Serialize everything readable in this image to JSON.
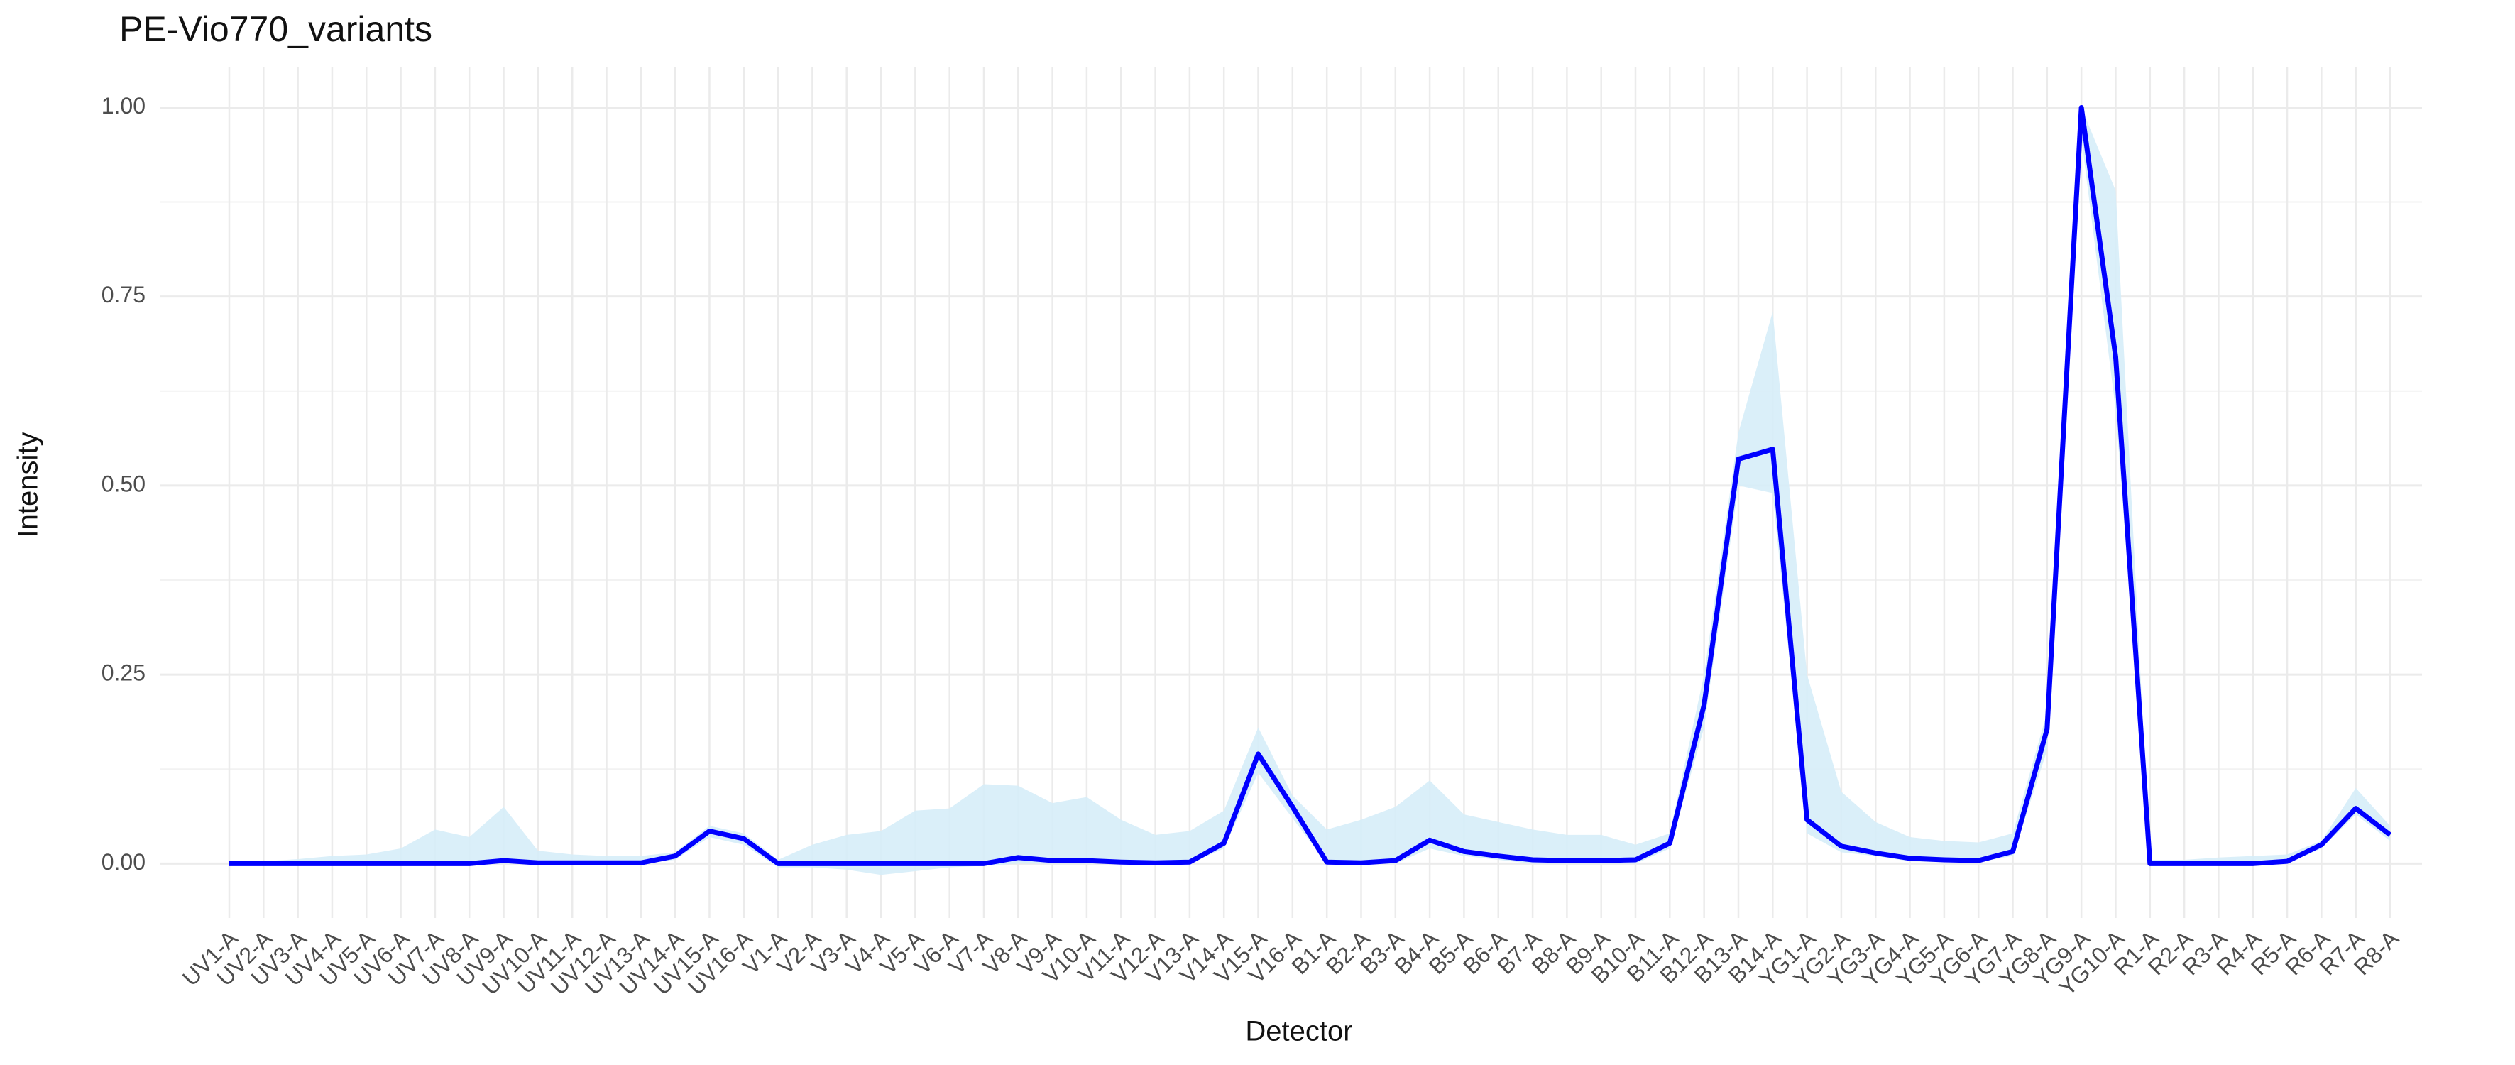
{
  "chart_data": {
    "type": "line",
    "title": "PE-Vio770_variants",
    "x_label": "Detector",
    "y_label": "Intensity",
    "categories": [
      "UV1-A",
      "UV2-A",
      "UV3-A",
      "UV4-A",
      "UV5-A",
      "UV6-A",
      "UV7-A",
      "UV8-A",
      "UV9-A",
      "UV10-A",
      "UV11-A",
      "UV12-A",
      "UV13-A",
      "UV14-A",
      "UV15-A",
      "UV16-A",
      "V1-A",
      "V2-A",
      "V3-A",
      "V4-A",
      "V5-A",
      "V6-A",
      "V7-A",
      "V8-A",
      "V9-A",
      "V10-A",
      "V11-A",
      "V12-A",
      "V13-A",
      "V14-A",
      "V15-A",
      "V16-A",
      "B1-A",
      "B2-A",
      "B3-A",
      "B4-A",
      "B5-A",
      "B6-A",
      "B7-A",
      "B8-A",
      "B9-A",
      "B10-A",
      "B11-A",
      "B12-A",
      "B13-A",
      "B14-A",
      "YG1-A",
      "YG2-A",
      "YG3-A",
      "YG4-A",
      "YG5-A",
      "YG6-A",
      "YG7-A",
      "YG8-A",
      "YG9-A",
      "YG10-A",
      "R1-A",
      "R2-A",
      "R3-A",
      "R4-A",
      "R5-A",
      "R6-A",
      "R7-A",
      "R8-A"
    ],
    "series": [
      {
        "color": "#0000ff",
        "values": [
          0,
          0,
          0,
          0,
          0,
          0,
          0,
          0,
          0.004,
          0.001,
          0.001,
          0.001,
          0.001,
          0.01,
          0.043,
          0.033,
          0,
          0,
          0,
          0,
          0,
          0,
          0,
          0.008,
          0.004,
          0.004,
          0.002,
          0.001,
          0.002,
          0.027,
          0.145,
          0.075,
          0.002,
          0.001,
          0.004,
          0.031,
          0.016,
          0.01,
          0.005,
          0.004,
          0.004,
          0.005,
          0.027,
          0.21,
          0.535,
          0.548,
          0.058,
          0.023,
          0.014,
          0.007,
          0.005,
          0.004,
          0.016,
          0.178,
          1.0,
          0.67,
          0,
          0,
          0,
          0,
          0.003,
          0.025,
          0.073,
          0.038
        ]
      }
    ],
    "band": {
      "color": "#d6edf8",
      "upper": [
        0,
        0.003,
        0.006,
        0.01,
        0.012,
        0.02,
        0.045,
        0.035,
        0.075,
        0.017,
        0.012,
        0.01,
        0.01,
        0.015,
        0.05,
        0.04,
        0.005,
        0.025,
        0.038,
        0.043,
        0.07,
        0.073,
        0.105,
        0.103,
        0.08,
        0.088,
        0.058,
        0.038,
        0.043,
        0.07,
        0.18,
        0.09,
        0.045,
        0.058,
        0.075,
        0.11,
        0.065,
        0.055,
        0.045,
        0.038,
        0.038,
        0.025,
        0.04,
        0.25,
        0.57,
        0.73,
        0.25,
        0.095,
        0.055,
        0.035,
        0.03,
        0.028,
        0.04,
        0.2,
        1.0,
        0.89,
        0.005,
        0.005,
        0.008,
        0.01,
        0.012,
        0.03,
        0.1,
        0.05
      ],
      "lower": [
        0,
        0,
        0,
        0,
        0,
        0,
        0,
        0,
        0,
        0,
        0,
        0,
        0,
        0.005,
        0.035,
        0.025,
        -0.005,
        -0.005,
        -0.008,
        -0.015,
        -0.01,
        -0.005,
        -0.003,
        0,
        0,
        0,
        0,
        0,
        0,
        0.02,
        0.12,
        0.06,
        0,
        0,
        0,
        0.02,
        0.01,
        0.005,
        0,
        0,
        0,
        0,
        0.02,
        0.18,
        0.5,
        0.49,
        0.04,
        0.015,
        0.01,
        0.003,
        0.002,
        0.002,
        0.01,
        0.15,
        0.96,
        0.6,
        0,
        0,
        0,
        0,
        0,
        0.02,
        0.065,
        0.03
      ]
    },
    "ylim": [
      -0.072,
      1.053
    ],
    "yticks": [
      {
        "value": 0,
        "label": "0.00"
      },
      {
        "value": 0.25,
        "label": "0.25"
      },
      {
        "value": 0.5,
        "label": "0.50"
      },
      {
        "value": 0.75,
        "label": "0.75"
      },
      {
        "value": 1,
        "label": "1.00"
      }
    ],
    "grid": true
  }
}
